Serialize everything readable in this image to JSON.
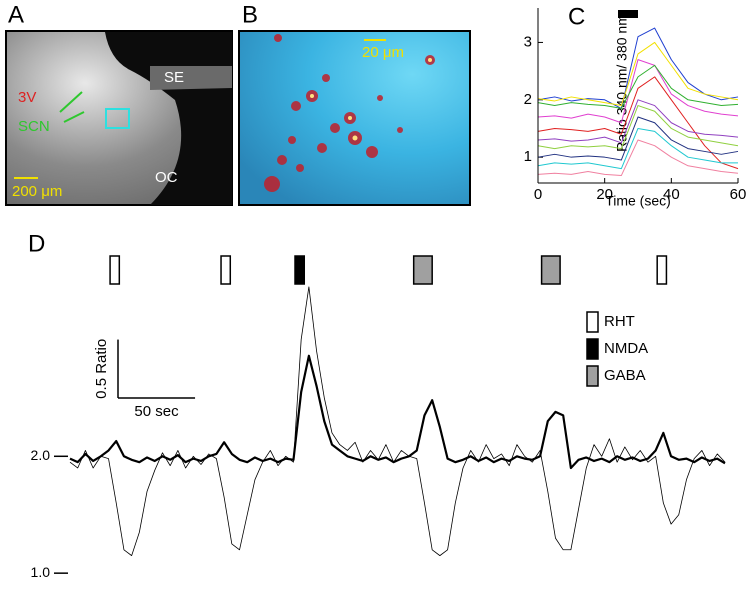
{
  "panels": {
    "a": {
      "label": "A",
      "v3": "3V",
      "scn": "SCN",
      "se": "SE",
      "oc": "OC",
      "scale": "200 μm"
    },
    "b": {
      "label": "B",
      "scale": "20 μm"
    }
  },
  "chart_data": [
    {
      "type": "line",
      "panel_label": "C",
      "xlabel": "Time (sec)",
      "ylabel": "Ratio 340 nm/ 380 nm",
      "xlim": [
        0,
        60
      ],
      "xticks": [
        0,
        20,
        40,
        60
      ],
      "ylim": [
        0.55,
        3.6
      ],
      "yticks": [
        1,
        2,
        3
      ],
      "stimulus": [
        24,
        30
      ],
      "stimulus_color": "#000000",
      "x": [
        0,
        5,
        10,
        15,
        20,
        25,
        30,
        35,
        40,
        45,
        50,
        55,
        60
      ],
      "series": [
        {
          "color": "#1f3fd0",
          "values": [
            2.0,
            2.05,
            1.98,
            2.02,
            2.0,
            1.85,
            3.1,
            3.25,
            2.7,
            2.3,
            2.1,
            2.0,
            2.05
          ]
        },
        {
          "color": "#f2e000",
          "values": [
            2.02,
            1.98,
            2.05,
            2.0,
            1.95,
            1.9,
            2.8,
            3.0,
            2.6,
            2.2,
            2.1,
            2.05,
            2.0
          ]
        },
        {
          "color": "#e040d0",
          "values": [
            1.7,
            1.72,
            1.68,
            1.75,
            1.7,
            1.6,
            2.7,
            2.6,
            2.1,
            1.9,
            1.8,
            1.75,
            1.72
          ]
        },
        {
          "color": "#30b030",
          "values": [
            1.95,
            1.9,
            1.95,
            1.92,
            1.9,
            1.85,
            2.4,
            2.6,
            2.2,
            2.0,
            1.95,
            1.9,
            1.92
          ]
        },
        {
          "color": "#e02020",
          "values": [
            1.45,
            1.5,
            1.48,
            1.45,
            1.5,
            1.4,
            2.2,
            2.4,
            2.0,
            1.6,
            1.2,
            0.9,
            0.8
          ]
        },
        {
          "color": "#20c8d0",
          "values": [
            0.85,
            0.9,
            0.88,
            0.9,
            0.85,
            0.8,
            1.5,
            1.45,
            1.2,
            1.0,
            0.95,
            0.9,
            0.9
          ]
        },
        {
          "color": "#90d040",
          "values": [
            1.2,
            1.15,
            1.2,
            1.18,
            1.2,
            1.15,
            1.9,
            1.8,
            1.5,
            1.35,
            1.3,
            1.25,
            1.2
          ]
        },
        {
          "color": "#203080",
          "values": [
            1.0,
            1.05,
            1.0,
            1.02,
            1.0,
            0.95,
            1.7,
            1.6,
            1.3,
            1.15,
            1.1,
            1.05,
            1.1
          ]
        },
        {
          "color": "#f080a0",
          "values": [
            0.7,
            0.72,
            0.7,
            0.75,
            0.7,
            0.68,
            1.3,
            1.2,
            1.0,
            0.85,
            0.8,
            0.75,
            0.72
          ]
        },
        {
          "color": "#9040c0",
          "values": [
            1.3,
            1.32,
            1.28,
            1.3,
            1.35,
            1.25,
            2.0,
            1.9,
            1.6,
            1.45,
            1.4,
            1.38,
            1.35
          ]
        }
      ]
    },
    {
      "type": "trace",
      "panel_label": "D",
      "xlim": [
        0,
        425
      ],
      "ylim": [
        0.95,
        3.5
      ],
      "yticks": [
        {
          "value": 2,
          "label": "2.0"
        },
        {
          "value": 1,
          "label": "1.0"
        }
      ],
      "scale_bar": {
        "y": 0.5,
        "y_label": "0.5 Ratio",
        "x": 50,
        "x_label": "50 sec"
      },
      "stimuli": [
        {
          "name": "RHT",
          "color": "#ffffff",
          "periods": [
            [
              26,
              32
            ],
            [
              98,
              104
            ],
            [
              381,
              387
            ]
          ]
        },
        {
          "name": "NMDA",
          "color": "#000000",
          "periods": [
            [
              146,
              152
            ]
          ]
        },
        {
          "name": "GABA",
          "color": "#a0a0a0",
          "periods": [
            [
              223,
              235
            ],
            [
              306,
              318
            ]
          ]
        }
      ],
      "x": [
        0,
        5,
        10,
        15,
        20,
        25,
        30,
        35,
        40,
        45,
        50,
        55,
        60,
        65,
        70,
        75,
        80,
        85,
        90,
        95,
        100,
        105,
        110,
        115,
        120,
        125,
        130,
        135,
        140,
        145,
        150,
        155,
        160,
        165,
        170,
        175,
        180,
        185,
        190,
        195,
        200,
        205,
        210,
        215,
        220,
        225,
        230,
        235,
        240,
        245,
        250,
        255,
        260,
        265,
        270,
        275,
        280,
        285,
        290,
        295,
        300,
        305,
        310,
        315,
        320,
        325,
        330,
        335,
        340,
        345,
        350,
        355,
        360,
        365,
        370,
        375,
        380,
        385,
        390,
        395,
        400,
        405,
        410,
        415,
        420,
        425
      ],
      "series": [
        {
          "color": "#000000",
          "line_width": 2.2,
          "values": [
            1.98,
            1.95,
            2.02,
            1.96,
            2.0,
            2.05,
            2.13,
            2.0,
            1.97,
            1.95,
            1.99,
            1.96,
            2.0,
            1.97,
            2.01,
            1.95,
            1.98,
            1.96,
            2.0,
            2.02,
            2.12,
            2.02,
            1.97,
            1.95,
            1.99,
            1.96,
            1.98,
            1.95,
            1.98,
            1.97,
            2.55,
            2.86,
            2.6,
            2.3,
            2.1,
            2.05,
            2.0,
            1.98,
            1.96,
            2.0,
            1.97,
            1.99,
            1.95,
            1.98,
            2.0,
            2.05,
            2.35,
            2.48,
            2.25,
            1.98,
            1.95,
            1.97,
            2.0,
            1.96,
            1.99,
            1.95,
            1.98,
            1.96,
            2.0,
            1.98,
            1.97,
            2.0,
            2.3,
            2.38,
            2.35,
            1.9,
            1.97,
            1.99,
            1.96,
            1.98,
            1.95,
            2.0,
            1.97,
            1.99,
            1.96,
            1.98,
            2.05,
            2.2,
            2.0,
            1.97,
            1.98,
            1.95,
            1.99,
            1.96,
            1.98,
            1.94
          ]
        },
        {
          "color": "#000000",
          "line_width": 0.8,
          "values": [
            1.95,
            1.9,
            2.05,
            1.9,
            2.0,
            1.98,
            1.6,
            1.2,
            1.15,
            1.35,
            1.7,
            1.88,
            2.03,
            1.92,
            2.05,
            1.9,
            2.0,
            1.93,
            2.02,
            1.98,
            1.65,
            1.25,
            1.2,
            1.5,
            1.8,
            1.95,
            2.05,
            1.92,
            2.0,
            1.95,
            3.0,
            3.45,
            2.9,
            2.5,
            2.2,
            2.1,
            2.05,
            2.12,
            1.95,
            2.05,
            1.97,
            2.1,
            1.95,
            2.05,
            2.0,
            1.98,
            1.6,
            1.2,
            1.15,
            1.2,
            1.6,
            1.9,
            2.05,
            1.95,
            2.1,
            1.98,
            2.02,
            1.92,
            2.1,
            2.0,
            1.95,
            2.05,
            1.7,
            1.3,
            1.2,
            1.2,
            1.55,
            1.9,
            2.1,
            2.0,
            2.15,
            1.95,
            2.08,
            1.97,
            2.05,
            1.95,
            2.0,
            1.6,
            1.42,
            1.5,
            1.8,
            1.98,
            2.05,
            1.92,
            2.02,
            1.95
          ]
        }
      ]
    }
  ]
}
